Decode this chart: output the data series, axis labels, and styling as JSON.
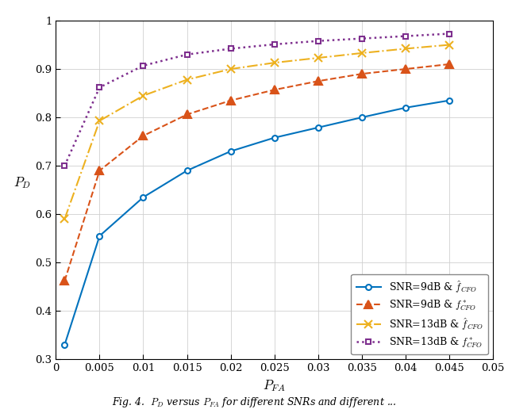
{
  "series": [
    {
      "label": "SNR=9dB & $\\hat{f}_{CFO}$",
      "color": "#0072BD",
      "linestyle": "-",
      "marker": "o",
      "markersize": 5,
      "linewidth": 1.5,
      "markerfacecolor": "white",
      "x": [
        0.001,
        0.005,
        0.01,
        0.015,
        0.02,
        0.025,
        0.03,
        0.035,
        0.04,
        0.045
      ],
      "y": [
        0.33,
        0.555,
        0.635,
        0.69,
        0.73,
        0.758,
        0.779,
        0.8,
        0.82,
        0.835
      ]
    },
    {
      "label": "SNR=9dB & $f^*_{CFO}$",
      "color": "#D95319",
      "linestyle": "--",
      "marker": "^",
      "markersize": 7,
      "linewidth": 1.5,
      "markerfacecolor": "#D95319",
      "x": [
        0.001,
        0.005,
        0.01,
        0.015,
        0.02,
        0.025,
        0.03,
        0.035,
        0.04,
        0.045
      ],
      "y": [
        0.462,
        0.69,
        0.762,
        0.806,
        0.835,
        0.857,
        0.875,
        0.89,
        0.9,
        0.91
      ]
    },
    {
      "label": "SNR=13dB & $\\hat{f}_{CFO}$",
      "color": "#EDB120",
      "linestyle": "-.",
      "marker": "x",
      "markersize": 7,
      "linewidth": 1.5,
      "markerfacecolor": "none",
      "x": [
        0.001,
        0.005,
        0.01,
        0.015,
        0.02,
        0.025,
        0.03,
        0.035,
        0.04,
        0.045
      ],
      "y": [
        0.59,
        0.793,
        0.845,
        0.878,
        0.9,
        0.913,
        0.923,
        0.933,
        0.942,
        0.95
      ]
    },
    {
      "label": "SNR=13dB & $f^*_{CFO}$",
      "color": "#7E2F8E",
      "linestyle": ":",
      "marker": "s",
      "markersize": 5,
      "linewidth": 1.8,
      "markerfacecolor": "white",
      "x": [
        0.001,
        0.005,
        0.01,
        0.015,
        0.02,
        0.025,
        0.03,
        0.035,
        0.04,
        0.045
      ],
      "y": [
        0.7,
        0.862,
        0.907,
        0.93,
        0.942,
        0.951,
        0.958,
        0.963,
        0.968,
        0.973
      ]
    }
  ],
  "xlabel": "$P_{FA}$",
  "ylabel": "$P_D$",
  "xlim": [
    0,
    0.05
  ],
  "ylim": [
    0.3,
    1.0
  ],
  "xticks": [
    0,
    0.005,
    0.01,
    0.015,
    0.02,
    0.025,
    0.03,
    0.035,
    0.04,
    0.045,
    0.05
  ],
  "yticks": [
    0.3,
    0.4,
    0.5,
    0.6,
    0.7,
    0.8,
    0.9,
    1.0
  ],
  "legend_loc": "lower right",
  "grid": true,
  "figsize": [
    6.4,
    5.21
  ],
  "dpi": 100,
  "caption": "Fig. 4.  $P_D$ versus $P_{FA}$ for different SNRs and different ..."
}
